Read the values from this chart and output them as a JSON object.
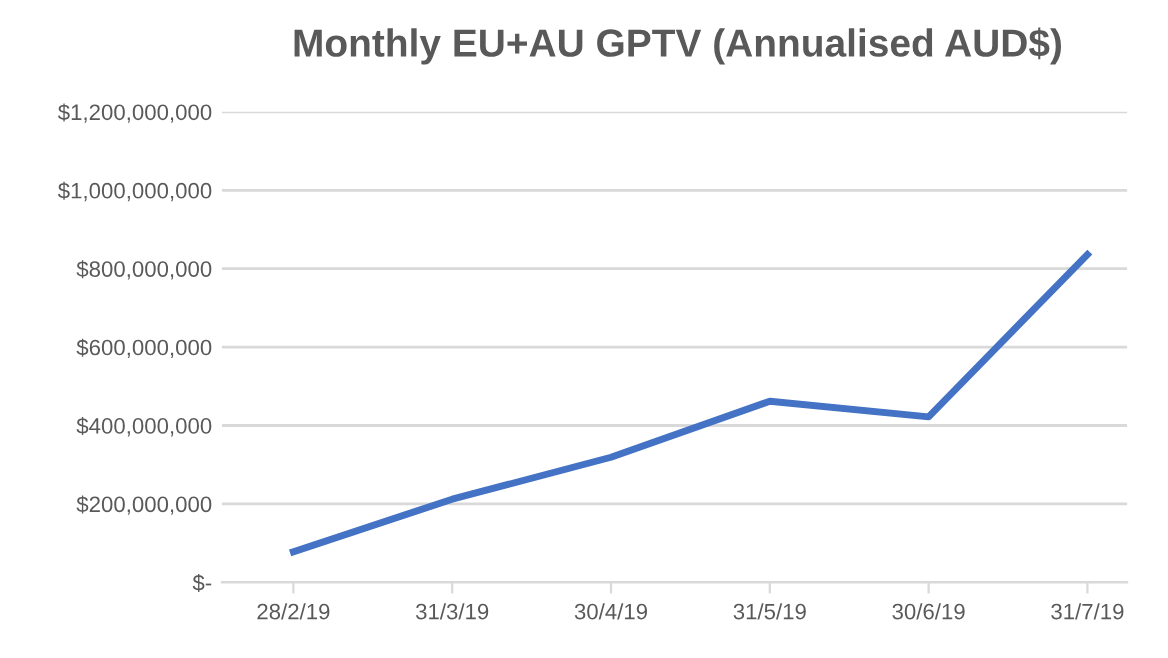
{
  "chart_data": {
    "type": "line",
    "title": "Monthly EU+AU GPTV (Annualised AUD$)",
    "categories": [
      "28/2/19",
      "31/3/19",
      "30/4/19",
      "31/5/19",
      "30/6/19",
      "31/7/19"
    ],
    "series": [
      {
        "color": "#4472c4",
        "values": [
          78000000,
          212000000,
          319000000,
          462000000,
          422000000,
          836000000
        ]
      }
    ],
    "ylim": [
      0,
      1200000000
    ],
    "yticks": [
      {
        "value": 0,
        "label": "$-"
      },
      {
        "value": 200000000,
        "label": "$200,000,000"
      },
      {
        "value": 400000000,
        "label": "$400,000,000"
      },
      {
        "value": 600000000,
        "label": "$600,000,000"
      },
      {
        "value": 800000000,
        "label": "$800,000,000"
      },
      {
        "value": 1000000000,
        "label": "$1,000,000,000"
      },
      {
        "value": 1200000000,
        "label": "$1,200,000,000"
      }
    ],
    "grid": "y",
    "marker": "none",
    "line_style": "solid"
  }
}
